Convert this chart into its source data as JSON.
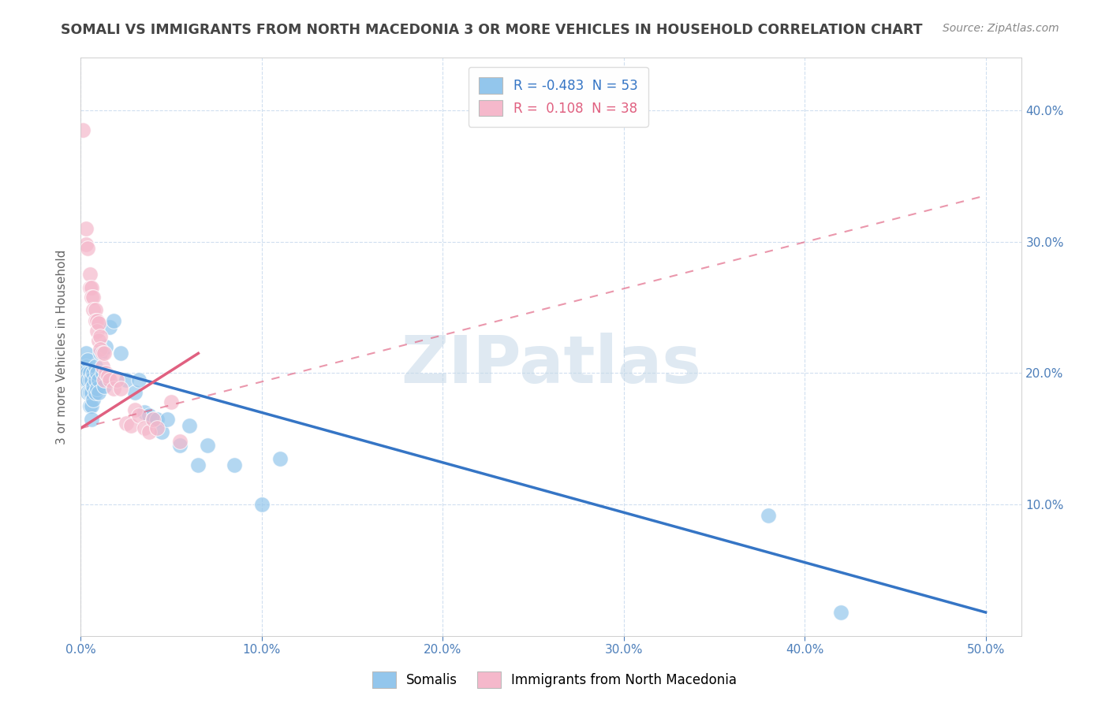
{
  "title": "SOMALI VS IMMIGRANTS FROM NORTH MACEDONIA 3 OR MORE VEHICLES IN HOUSEHOLD CORRELATION CHART",
  "source": "Source: ZipAtlas.com",
  "ylabel": "3 or more Vehicles in Household",
  "xlim": [
    0.0,
    0.52
  ],
  "ylim": [
    0.0,
    0.44
  ],
  "xticks": [
    0.0,
    0.1,
    0.2,
    0.3,
    0.4,
    0.5
  ],
  "yticks_right": [
    0.1,
    0.2,
    0.3,
    0.4
  ],
  "ytick_labels_right": [
    "10.0%",
    "20.0%",
    "30.0%",
    "40.0%"
  ],
  "xtick_labels": [
    "0.0%",
    "10.0%",
    "20.0%",
    "30.0%",
    "40.0%",
    "50.0%"
  ],
  "legend_line1": "R = -0.483  N = 53",
  "legend_line2": "R =  0.108  N = 38",
  "somali_color": "#93c6ec",
  "macedonia_color": "#f5b8cb",
  "somali_line_color": "#3575c5",
  "macedonia_line_color": "#e06080",
  "watermark": "ZIPatlas",
  "watermark_color": "#c5d8e8",
  "background_color": "#ffffff",
  "grid_color": "#d0dff0",
  "somali_scatter": [
    [
      0.001,
      0.2
    ],
    [
      0.002,
      0.2
    ],
    [
      0.002,
      0.195
    ],
    [
      0.003,
      0.215
    ],
    [
      0.003,
      0.205
    ],
    [
      0.003,
      0.195
    ],
    [
      0.004,
      0.21
    ],
    [
      0.004,
      0.2
    ],
    [
      0.004,
      0.195
    ],
    [
      0.004,
      0.185
    ],
    [
      0.005,
      0.2
    ],
    [
      0.005,
      0.195
    ],
    [
      0.005,
      0.185
    ],
    [
      0.005,
      0.175
    ],
    [
      0.006,
      0.195
    ],
    [
      0.006,
      0.185
    ],
    [
      0.006,
      0.175
    ],
    [
      0.006,
      0.165
    ],
    [
      0.007,
      0.2
    ],
    [
      0.007,
      0.19
    ],
    [
      0.007,
      0.18
    ],
    [
      0.008,
      0.205
    ],
    [
      0.008,
      0.195
    ],
    [
      0.008,
      0.185
    ],
    [
      0.009,
      0.2
    ],
    [
      0.009,
      0.188
    ],
    [
      0.01,
      0.195
    ],
    [
      0.01,
      0.185
    ],
    [
      0.011,
      0.215
    ],
    [
      0.012,
      0.2
    ],
    [
      0.013,
      0.19
    ],
    [
      0.014,
      0.22
    ],
    [
      0.016,
      0.235
    ],
    [
      0.018,
      0.24
    ],
    [
      0.022,
      0.215
    ],
    [
      0.025,
      0.195
    ],
    [
      0.03,
      0.185
    ],
    [
      0.032,
      0.195
    ],
    [
      0.035,
      0.17
    ],
    [
      0.038,
      0.168
    ],
    [
      0.04,
      0.165
    ],
    [
      0.042,
      0.165
    ],
    [
      0.045,
      0.155
    ],
    [
      0.048,
      0.165
    ],
    [
      0.055,
      0.145
    ],
    [
      0.06,
      0.16
    ],
    [
      0.065,
      0.13
    ],
    [
      0.07,
      0.145
    ],
    [
      0.085,
      0.13
    ],
    [
      0.1,
      0.1
    ],
    [
      0.11,
      0.135
    ],
    [
      0.38,
      0.092
    ],
    [
      0.42,
      0.018
    ]
  ],
  "macedonia_scatter": [
    [
      0.001,
      0.385
    ],
    [
      0.003,
      0.31
    ],
    [
      0.003,
      0.298
    ],
    [
      0.004,
      0.295
    ],
    [
      0.005,
      0.275
    ],
    [
      0.005,
      0.265
    ],
    [
      0.006,
      0.265
    ],
    [
      0.006,
      0.258
    ],
    [
      0.007,
      0.258
    ],
    [
      0.007,
      0.248
    ],
    [
      0.008,
      0.248
    ],
    [
      0.008,
      0.24
    ],
    [
      0.009,
      0.24
    ],
    [
      0.009,
      0.232
    ],
    [
      0.01,
      0.238
    ],
    [
      0.01,
      0.225
    ],
    [
      0.011,
      0.228
    ],
    [
      0.011,
      0.218
    ],
    [
      0.012,
      0.215
    ],
    [
      0.012,
      0.205
    ],
    [
      0.013,
      0.215
    ],
    [
      0.013,
      0.195
    ],
    [
      0.014,
      0.2
    ],
    [
      0.015,
      0.198
    ],
    [
      0.016,
      0.195
    ],
    [
      0.018,
      0.188
    ],
    [
      0.02,
      0.195
    ],
    [
      0.022,
      0.188
    ],
    [
      0.025,
      0.162
    ],
    [
      0.028,
      0.16
    ],
    [
      0.03,
      0.172
    ],
    [
      0.032,
      0.168
    ],
    [
      0.035,
      0.158
    ],
    [
      0.038,
      0.155
    ],
    [
      0.04,
      0.165
    ],
    [
      0.042,
      0.158
    ],
    [
      0.05,
      0.178
    ],
    [
      0.055,
      0.148
    ]
  ],
  "somali_line": {
    "x0": 0.0,
    "y0": 0.208,
    "x1": 0.5,
    "y1": 0.018
  },
  "macedonia_solid_line": {
    "x0": 0.0,
    "y0": 0.158,
    "x1": 0.065,
    "y1": 0.215
  },
  "macedonia_dashed_line": {
    "x0": 0.0,
    "y0": 0.158,
    "x1": 0.5,
    "y1": 0.335
  }
}
